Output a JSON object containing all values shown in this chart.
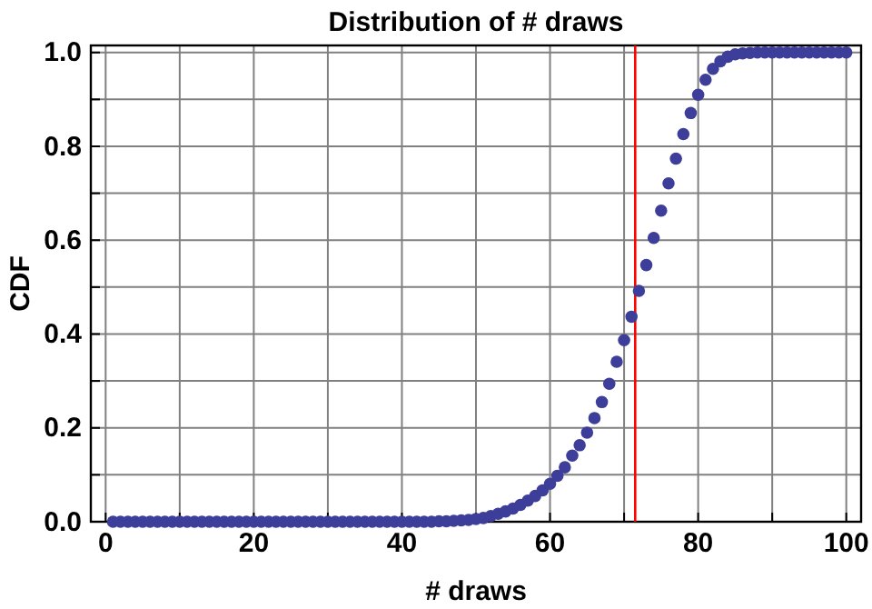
{
  "chart_data": {
    "type": "scatter",
    "title": "Distribution of # draws",
    "xlabel": "# draws",
    "ylabel": "CDF",
    "x": [
      1,
      2,
      3,
      4,
      5,
      6,
      7,
      8,
      9,
      10,
      11,
      12,
      13,
      14,
      15,
      16,
      17,
      18,
      19,
      20,
      21,
      22,
      23,
      24,
      25,
      26,
      27,
      28,
      29,
      30,
      31,
      32,
      33,
      34,
      35,
      36,
      37,
      38,
      39,
      40,
      41,
      42,
      43,
      44,
      45,
      46,
      47,
      48,
      49,
      50,
      51,
      52,
      53,
      54,
      55,
      56,
      57,
      58,
      59,
      60,
      61,
      62,
      63,
      64,
      65,
      66,
      67,
      68,
      69,
      70,
      71,
      72,
      73,
      74,
      75,
      76,
      77,
      78,
      79,
      80,
      81,
      82,
      83,
      84,
      85,
      86,
      87,
      88,
      89,
      90,
      91,
      92,
      93,
      94,
      95,
      96,
      97,
      98,
      99,
      100
    ],
    "series": [
      {
        "color": "#3d3d9a",
        "values": [
          0,
          0,
          0,
          0,
          0,
          0,
          0,
          0,
          0,
          0,
          0,
          0,
          0,
          0,
          0,
          0,
          0,
          0,
          0,
          0,
          0,
          0,
          0,
          0,
          0,
          0,
          0,
          0,
          0,
          0,
          0,
          0,
          0,
          0,
          0,
          0,
          0,
          0,
          0,
          0,
          0,
          0,
          0,
          0,
          0.001,
          0.001,
          0.002,
          0.003,
          0.004,
          0.006,
          0.008,
          0.012,
          0.017,
          0.022,
          0.028,
          0.036,
          0.045,
          0.055,
          0.067,
          0.081,
          0.098,
          0.116,
          0.141,
          0.163,
          0.19,
          0.221,
          0.255,
          0.294,
          0.341,
          0.387,
          0.437,
          0.492,
          0.547,
          0.605,
          0.663,
          0.721,
          0.774,
          0.826,
          0.871,
          0.91,
          0.942,
          0.965,
          0.981,
          0.991,
          0.996,
          0.998,
          0.999,
          1,
          1,
          1,
          1,
          1,
          1,
          1,
          1,
          1,
          1,
          1,
          1,
          1
        ]
      }
    ],
    "marker": "circle",
    "xlim": [
      -2,
      102
    ],
    "ylim": [
      0,
      1.015
    ],
    "xticks": [
      0,
      {
        "value": 10,
        "label": null
      },
      20,
      {
        "value": 30,
        "label": null
      },
      40,
      {
        "value": 50,
        "label": null
      },
      60,
      {
        "value": 70,
        "label": null
      },
      80,
      {
        "value": 90,
        "label": null
      },
      100
    ],
    "yticks": [
      {
        "value": 0,
        "label": "0.0"
      },
      {
        "value": 0.1,
        "label": null
      },
      {
        "value": 0.2,
        "label": "0.2"
      },
      {
        "value": 0.3,
        "label": null
      },
      {
        "value": 0.4,
        "label": "0.4"
      },
      {
        "value": 0.5,
        "label": null
      },
      {
        "value": 0.6,
        "label": "0.6"
      },
      {
        "value": 0.7,
        "label": null
      },
      {
        "value": 0.8,
        "label": "0.8"
      },
      {
        "value": 0.9,
        "label": null
      },
      {
        "value": 1,
        "label": "1.0"
      }
    ],
    "grid": true,
    "ref_lines": [
      {
        "axis": "x",
        "value": 71.5,
        "color": "#ff0000"
      }
    ]
  }
}
